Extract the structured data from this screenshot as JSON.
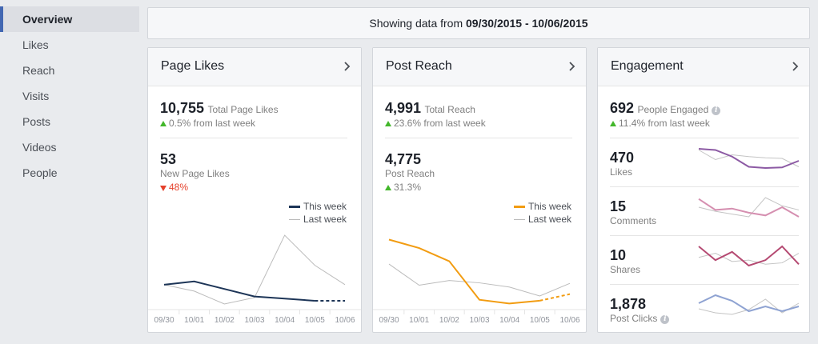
{
  "sidebar": {
    "items": [
      "Overview",
      "Likes",
      "Reach",
      "Visits",
      "Posts",
      "Videos",
      "People"
    ]
  },
  "date_range": {
    "prefix": "Showing data from",
    "range": "09/30/2015 - 10/06/2015"
  },
  "legend": {
    "this_week": "This week",
    "last_week": "Last week"
  },
  "colors": {
    "likes_this_week": "#1d3557",
    "reach_this_week": "#f29c11",
    "last_week": "#bbbbbb"
  },
  "page_likes": {
    "title": "Page Likes",
    "total_value": "10,755",
    "total_label": "Total Page Likes",
    "total_delta": "0.5% from last week",
    "new_value": "53",
    "new_label": "New Page Likes",
    "new_delta": "48%"
  },
  "post_reach": {
    "title": "Post Reach",
    "total_value": "4,991",
    "total_label": "Total Reach",
    "total_delta": "23.6% from last week",
    "reach_value": "4,775",
    "reach_label": "Post Reach",
    "reach_delta": "31.3%"
  },
  "engagement": {
    "title": "Engagement",
    "total_value": "692",
    "total_label": "People Engaged",
    "total_delta": "11.4% from last week",
    "rows": [
      {
        "value": "470",
        "label": "Likes",
        "color": "#8c5aa4"
      },
      {
        "value": "15",
        "label": "Comments",
        "color": "#d58fb0"
      },
      {
        "value": "10",
        "label": "Shares",
        "color": "#b54a72"
      },
      {
        "value": "1,878",
        "label": "Post Clicks",
        "color": "#8fa3d2"
      }
    ]
  },
  "chart_data": [
    {
      "type": "line",
      "title": "Page Likes",
      "categories": [
        "09/30",
        "10/01",
        "10/02",
        "10/03",
        "10/04",
        "10/05",
        "10/06"
      ],
      "series": [
        {
          "name": "This week",
          "values": [
            18,
            21,
            14,
            7,
            5,
            3,
            3
          ]
        },
        {
          "name": "Last week",
          "values": [
            18,
            12,
            0,
            6,
            64,
            36,
            18
          ]
        }
      ],
      "ylim": [
        0,
        70
      ]
    },
    {
      "type": "line",
      "title": "Post Reach",
      "categories": [
        "09/30",
        "10/01",
        "10/02",
        "10/03",
        "10/04",
        "10/05",
        "10/06"
      ],
      "series": [
        {
          "name": "This week",
          "values": [
            1370,
            1190,
            910,
            90,
            10,
            70,
            210
          ]
        },
        {
          "name": "Last week",
          "values": [
            850,
            400,
            500,
            450,
            360,
            170,
            440
          ]
        }
      ],
      "ylim": [
        0,
        1600
      ]
    },
    {
      "type": "line",
      "title": "Likes",
      "series": [
        {
          "name": "This week",
          "values": [
            60,
            58,
            47,
            30,
            28,
            29,
            40
          ]
        },
        {
          "name": "Last week",
          "values": [
            58,
            42,
            50,
            47,
            45,
            44,
            30
          ]
        }
      ]
    },
    {
      "type": "line",
      "title": "Comments",
      "series": [
        {
          "name": "This week",
          "values": [
            3,
            2.2,
            2.3,
            2,
            1.8,
            2.4,
            1.7
          ]
        },
        {
          "name": "Last week",
          "values": [
            2.4,
            2.1,
            1.9,
            1.7,
            3.1,
            2.5,
            2.2
          ]
        }
      ]
    },
    {
      "type": "line",
      "title": "Shares",
      "series": [
        {
          "name": "This week",
          "values": [
            3,
            2,
            2.6,
            1.6,
            2,
            3,
            1.7
          ]
        },
        {
          "name": "Last week",
          "values": [
            2.2,
            2.5,
            1.9,
            2,
            1.7,
            1.8,
            2.5
          ]
        }
      ]
    },
    {
      "type": "line",
      "title": "Post Clicks",
      "series": [
        {
          "name": "This week",
          "values": [
            1.6,
            2.6,
            1.9,
            0.6,
            1.2,
            0.6,
            1.2
          ]
        },
        {
          "name": "Last week",
          "values": [
            0.9,
            0.4,
            0.2,
            0.8,
            2.1,
            0.4,
            1.6
          ]
        }
      ]
    }
  ]
}
